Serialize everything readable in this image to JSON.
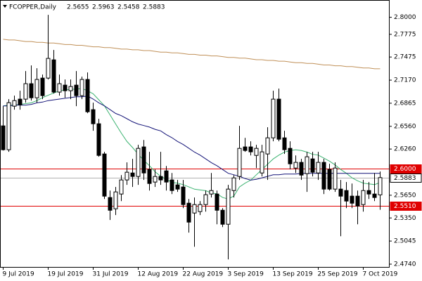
{
  "chart_data": {
    "type": "candlestick",
    "title": "FCOPPER,Daily",
    "categories": [
      "9 Jul 2019",
      null,
      null,
      null,
      null,
      null,
      null,
      null,
      "19 Jul 2019",
      null,
      null,
      null,
      null,
      null,
      null,
      null,
      "31 Jul 2019",
      null,
      null,
      null,
      null,
      null,
      null,
      null,
      "12 Aug 2019",
      null,
      null,
      null,
      null,
      null,
      null,
      null,
      "22 Aug 2019",
      null,
      null,
      null,
      null,
      null,
      null,
      null,
      "3 Sep 2019",
      null,
      null,
      null,
      null,
      null,
      null,
      null,
      "13 Sep 2019",
      null,
      null,
      null,
      null,
      null,
      null,
      null,
      "25 Sep 2019",
      null,
      null,
      null,
      null,
      null,
      null,
      null,
      "7 Oct 2019",
      null,
      null,
      null
    ],
    "open": [
      2.6566,
      2.6251,
      2.6826,
      2.6919,
      2.6919,
      2.7123,
      2.6937,
      2.7197,
      2.7197,
      2.7438,
      2.7012,
      2.7104,
      2.703,
      2.7104,
      2.6965,
      2.7179,
      2.678,
      2.6594,
      2.6195,
      2.562,
      2.5471,
      2.5666,
      2.5852,
      2.5944,
      2.5898,
      2.6288,
      2.5991,
      2.5824,
      2.5898,
      2.5972,
      2.5852,
      2.5787,
      2.5759,
      2.5545,
      2.5415,
      2.5434,
      2.5527,
      2.5666,
      2.5666,
      2.5452,
      2.5267,
      2.5712,
      2.5898,
      2.6288,
      2.6288,
      2.6176,
      2.5944,
      2.6195,
      2.6408,
      2.6919,
      2.6408,
      2.6269,
      2.6009,
      2.6084,
      2.5935,
      2.613,
      2.5944,
      2.6084,
      2.5991,
      2.5731,
      2.5731,
      2.5712,
      2.5638,
      2.5638,
      2.5527,
      2.5712,
      2.5666,
      2.5655
    ],
    "high": [
      2.6826,
      2.6919,
      2.6965,
      2.703,
      2.729,
      2.7364,
      2.7327,
      2.7244,
      2.8032,
      2.7568,
      2.7244,
      2.7179,
      2.7179,
      2.729,
      2.7216,
      2.7271,
      2.6872,
      2.6659,
      2.6223,
      2.5712,
      2.5759,
      2.5916,
      2.6084,
      2.613,
      2.6316,
      2.638,
      2.6223,
      2.5991,
      2.6223,
      2.6037,
      2.5944,
      2.5852,
      2.5852,
      2.5601,
      2.562,
      2.5573,
      2.5712,
      2.5944,
      2.5712,
      2.548,
      2.5787,
      2.5916,
      2.6566,
      2.6408,
      2.6362,
      2.6316,
      2.6316,
      2.6548,
      2.703,
      2.7058,
      2.6501,
      2.6362,
      2.6176,
      2.613,
      2.6223,
      2.6223,
      2.6223,
      2.613,
      2.6065,
      2.6084,
      2.5852,
      2.5824,
      2.5805,
      2.5712,
      2.5852,
      2.5824,
      2.5944,
      2.5963
    ],
    "low": [
      2.6241,
      2.6223,
      2.678,
      2.678,
      2.6872,
      2.69,
      2.6872,
      2.6919,
      2.7179,
      2.6993,
      2.6965,
      2.6937,
      2.6919,
      2.6826,
      2.6919,
      2.6733,
      2.6501,
      2.6158,
      2.5601,
      2.5323,
      2.5388,
      2.5573,
      2.5787,
      2.5759,
      2.5787,
      2.5852,
      2.5712,
      2.5759,
      2.5787,
      2.5712,
      2.5666,
      2.5694,
      2.548,
      2.5156,
      2.497,
      2.5388,
      2.5434,
      2.562,
      2.5267,
      2.523,
      2.4803,
      2.562,
      2.5852,
      2.6223,
      2.6176,
      2.6009,
      2.5898,
      2.5852,
      2.6362,
      2.6362,
      2.6195,
      2.5991,
      2.5944,
      2.5852,
      2.5694,
      2.5898,
      2.5852,
      2.5666,
      2.5712,
      2.5694,
      2.5109,
      2.548,
      2.548,
      2.5267,
      2.5434,
      2.5601,
      2.5573,
      2.5458
    ],
    "close": [
      2.6251,
      2.6872,
      2.69,
      2.6844,
      2.7123,
      2.6937,
      2.7179,
      2.6965,
      2.7457,
      2.7012,
      2.7123,
      2.703,
      2.7086,
      2.6965,
      2.7179,
      2.6752,
      2.6594,
      2.6176,
      2.5638,
      2.5452,
      2.5694,
      2.5852,
      2.5954,
      2.5898,
      2.6269,
      2.5944,
      2.5805,
      2.5898,
      2.5852,
      2.5824,
      2.5712,
      2.5731,
      2.5527,
      2.5295,
      2.5527,
      2.5527,
      2.5657,
      2.5712,
      2.5452,
      2.5267,
      2.5731,
      2.5879,
      2.6269,
      2.6241,
      2.6223,
      2.6269,
      2.6223,
      2.6408,
      2.6919,
      2.639,
      2.6251,
      2.6065,
      2.6084,
      2.5916,
      2.6158,
      2.5954,
      2.6084,
      2.5731,
      2.5731,
      2.6009,
      2.5638,
      2.5573,
      2.5545,
      2.5508,
      2.5712,
      2.5666,
      2.562,
      2.5883
    ],
    "up_color": "#ffffff",
    "down_color": "#000000",
    "series": [
      {
        "color": "#3cb371",
        "values": [
          2.683,
          2.684,
          2.684,
          2.685,
          2.686,
          2.687,
          2.69,
          2.694,
          2.697,
          2.7,
          2.703,
          2.704,
          2.705,
          2.705,
          2.706,
          2.703,
          2.699,
          2.691,
          2.683,
          2.671,
          2.659,
          2.647,
          2.636,
          2.628,
          2.619,
          2.611,
          2.604,
          2.596,
          2.59,
          2.586,
          2.582,
          2.581,
          2.579,
          2.576,
          2.573,
          2.572,
          2.571,
          2.568,
          2.567,
          2.562,
          2.56,
          2.564,
          2.576,
          2.581,
          2.585,
          2.592,
          2.599,
          2.606,
          2.613,
          2.618,
          2.622,
          2.624,
          2.625,
          2.624,
          2.622,
          2.619,
          2.618,
          2.614,
          2.61,
          2.605,
          2.599,
          2.594,
          2.588,
          2.584,
          2.581,
          2.58,
          2.579,
          2.582
        ]
      },
      {
        "color": "#141478",
        "values": [
          2.683,
          2.683,
          2.684,
          2.684,
          2.684,
          2.685,
          2.687,
          2.688,
          2.69,
          2.691,
          2.692,
          2.693,
          2.694,
          2.695,
          2.695,
          2.696,
          2.692,
          2.687,
          2.683,
          2.678,
          2.673,
          2.67,
          2.666,
          2.662,
          2.659,
          2.657,
          2.655,
          2.652,
          2.65,
          2.645,
          2.641,
          2.636,
          2.632,
          2.627,
          2.622,
          2.618,
          2.613,
          2.608,
          2.604,
          2.599,
          2.594,
          2.592,
          2.59,
          2.587,
          2.585,
          2.586,
          2.588,
          2.59,
          2.592,
          2.592,
          2.593,
          2.593,
          2.593,
          2.594,
          2.594,
          2.594,
          2.594,
          2.594,
          2.594,
          2.594,
          2.594,
          2.594,
          2.594,
          2.594,
          2.594,
          2.594,
          2.594,
          2.594
        ]
      },
      {
        "color": "#c09058",
        "values": [
          2.771,
          2.77,
          2.77,
          2.769,
          2.768,
          2.768,
          2.767,
          2.767,
          2.766,
          2.766,
          2.765,
          2.764,
          2.764,
          2.763,
          2.763,
          2.762,
          2.761,
          2.761,
          2.76,
          2.76,
          2.759,
          2.758,
          2.758,
          2.757,
          2.757,
          2.756,
          2.756,
          2.755,
          2.754,
          2.754,
          2.753,
          2.753,
          2.752,
          2.751,
          2.751,
          2.75,
          2.75,
          2.749,
          2.749,
          2.748,
          2.747,
          2.747,
          2.746,
          2.746,
          2.745,
          2.744,
          2.744,
          2.743,
          2.743,
          2.742,
          2.742,
          2.741,
          2.74,
          2.74,
          2.739,
          2.739,
          2.738,
          2.737,
          2.737,
          2.736,
          2.736,
          2.735,
          2.735,
          2.734,
          2.733,
          2.733,
          2.732,
          2.732
        ]
      }
    ],
    "hlines": [
      {
        "value": 2.6,
        "label": "2.6000",
        "color": "#e00000"
      },
      {
        "value": 2.551,
        "label": "2.5510",
        "color": "#e00000"
      },
      {
        "value": 2.5883,
        "label": "2.5883",
        "color": "#b0b0b0"
      }
    ],
    "ylim": [
      2.4703,
      2.8191
    ],
    "yticks": [
      {
        "value": 2.8,
        "label": "2.8000"
      },
      2.7775,
      2.7475,
      {
        "value": 2.717,
        "label": "2.7170"
      },
      2.6865,
      {
        "value": 2.656,
        "label": "2.6560"
      },
      {
        "value": 2.626,
        "label": "2.6260"
      },
      {
        "value": 2.565,
        "label": "2.5650"
      },
      {
        "value": 2.535,
        "label": "2.5350"
      },
      2.5045,
      {
        "value": 2.474,
        "label": "2.4740"
      }
    ]
  }
}
